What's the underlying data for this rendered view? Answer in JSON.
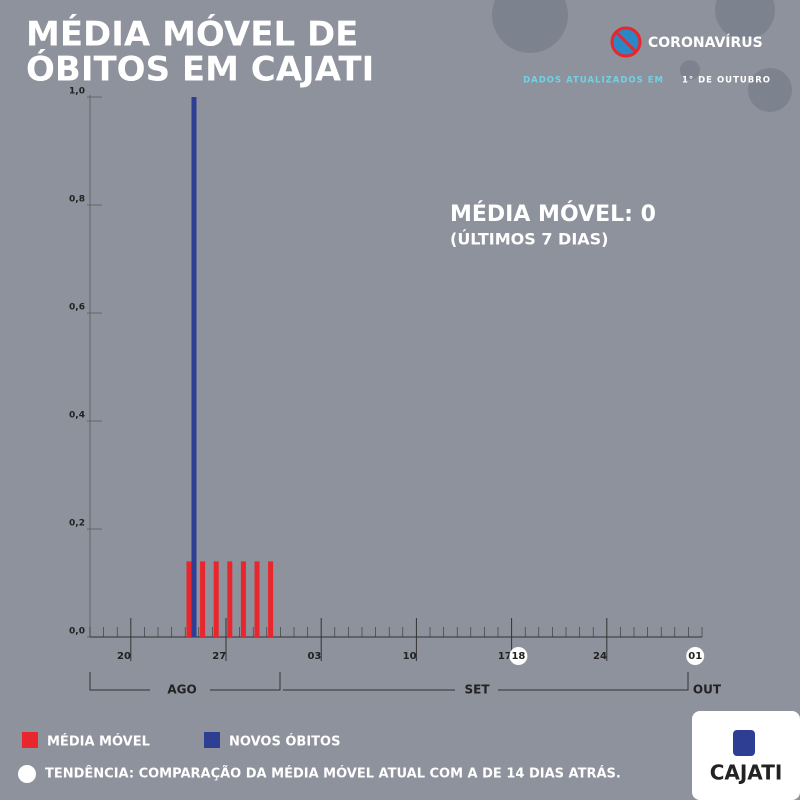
{
  "chart_data": {
    "type": "bar",
    "title_lines": [
      "MÉDIA MÓVEL DE",
      "ÓBITOS EM CAJATI"
    ],
    "brand": "CORONAVÍRUS",
    "updated_prefix": "DADOS ATUALIZADOS EM",
    "updated_date": "1° DE OUTUBRO",
    "annotation": "MÉDIA MÓVEL: 0",
    "annotation_sub": "(ÚLTIMOS 7 DIAS)",
    "categories": [
      null,
      null,
      "20",
      null,
      null,
      null,
      null,
      null,
      null,
      "27",
      null,
      null,
      null,
      null,
      null,
      null,
      "03",
      null,
      null,
      null,
      null,
      null,
      null,
      "10",
      null,
      null,
      null,
      null,
      null,
      null,
      "17",
      "18",
      null,
      null,
      null,
      null,
      null,
      "24",
      null,
      null,
      null,
      null,
      null,
      null,
      "01"
    ],
    "trend_markers": [
      "18",
      "01"
    ],
    "months": [
      "AGO",
      "SET",
      "OUT"
    ],
    "series": [
      {
        "name": "MÉDIA MÓVEL",
        "color": "#e8262b",
        "values": [
          0,
          0,
          0,
          0,
          0,
          0,
          0,
          0.14,
          0.14,
          0.14,
          0.14,
          0.14,
          0.14,
          0.14,
          0,
          0,
          0,
          0,
          0,
          0,
          0,
          0,
          0,
          0,
          0,
          0,
          0,
          0,
          0,
          0,
          0,
          0,
          0,
          0,
          0,
          0,
          0,
          0,
          0,
          0,
          0,
          0,
          0,
          0,
          0
        ]
      },
      {
        "name": "NOVOS ÓBITOS",
        "color": "#2e3f93",
        "values": [
          0,
          0,
          0,
          0,
          0,
          0,
          0,
          1,
          0,
          0,
          0,
          0,
          0,
          0,
          0,
          0,
          0,
          0,
          0,
          0,
          0,
          0,
          0,
          0,
          0,
          0,
          0,
          0,
          0,
          0,
          0,
          0,
          0,
          0,
          0,
          0,
          0,
          0,
          0,
          0,
          0,
          0,
          0,
          0,
          0
        ]
      }
    ],
    "ylim": [
      0,
      1
    ],
    "yticks": [
      {
        "value": 0,
        "label": "0,0"
      },
      {
        "value": 0.2,
        "label": "0,2"
      },
      {
        "value": 0.4,
        "label": "0,4"
      },
      {
        "value": 0.6,
        "label": "0,6"
      },
      {
        "value": 0.8,
        "label": "0,8"
      },
      {
        "value": 1,
        "label": "1,0"
      }
    ],
    "footnote": "TENDÊNCIA: COMPARAÇÃO DA MÉDIA MÓVEL ATUAL COM A DE 14 DIAS ATRÁS.",
    "logo_text": "CAJATI"
  }
}
